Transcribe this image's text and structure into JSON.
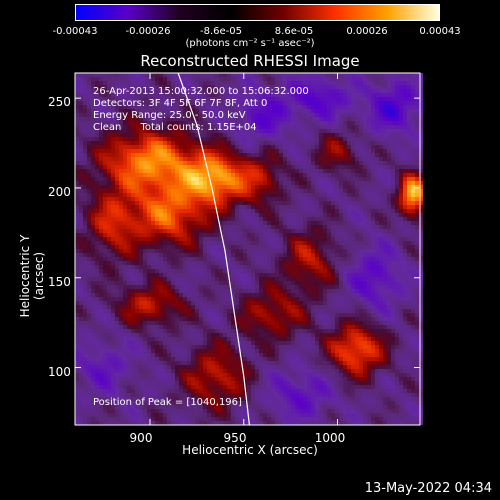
{
  "colorbar": {
    "ticks": [
      "-0.00043",
      "-0.00026",
      "-8.6e-05",
      "8.6e-05",
      "0.00026",
      "0.00043"
    ],
    "units": "(photons cm⁻² s⁻¹ asec⁻²)",
    "colors": [
      "#0000ff",
      "#5a00c8",
      "#200020",
      "#000000",
      "#700000",
      "#ff3000",
      "#ffa000",
      "#ffffe0"
    ]
  },
  "info": {
    "line1": "26-Apr-2013 15:00:32.000 to 15:06:32.000",
    "line2": "Detectors: 3F 4F 5F 6F 7F 8F, Att 0",
    "line3": "Energy Range: 25.0 - 50.0 keV",
    "line4": "Clean      Total counts: 1.15E+04",
    "peak": "Position of Peak = [1040,196]"
  },
  "footer": {
    "datestamp": "13-May-2022 04:34"
  },
  "chart_data": {
    "type": "heatmap",
    "title": "Reconstructed RHESSI Image",
    "xlabel": "Heliocentric X (arcsec)",
    "ylabel": "Heliocentric Y (arcsec)",
    "xlim": [
      860,
      1044
    ],
    "ylim": [
      68,
      264
    ],
    "xticks": [
      900,
      950,
      1000
    ],
    "yticks": [
      100,
      150,
      200,
      250
    ],
    "value_range": [
      -0.00043,
      0.00043
    ],
    "peak_position": [
      1040,
      196
    ],
    "limb_curve": [
      [
        915,
        264
      ],
      [
        925,
        235
      ],
      [
        933,
        200
      ],
      [
        940,
        165
      ],
      [
        945,
        130
      ],
      [
        950,
        95
      ],
      [
        953,
        68
      ]
    ],
    "blobs": [
      {
        "x": 900,
        "y": 215,
        "sx": 18,
        "sy": 12,
        "a": 0.85
      },
      {
        "x": 935,
        "y": 205,
        "sx": 12,
        "sy": 10,
        "a": 0.9
      },
      {
        "x": 910,
        "y": 185,
        "sx": 14,
        "sy": 12,
        "a": 0.7
      },
      {
        "x": 880,
        "y": 180,
        "sx": 10,
        "sy": 14,
        "a": 0.5
      },
      {
        "x": 900,
        "y": 135,
        "sx": 12,
        "sy": 8,
        "a": 0.5
      },
      {
        "x": 935,
        "y": 95,
        "sx": 12,
        "sy": 12,
        "a": 0.5
      },
      {
        "x": 965,
        "y": 130,
        "sx": 12,
        "sy": 10,
        "a": 0.45
      },
      {
        "x": 985,
        "y": 160,
        "sx": 10,
        "sy": 12,
        "a": 0.45
      },
      {
        "x": 1010,
        "y": 110,
        "sx": 10,
        "sy": 10,
        "a": 0.75
      },
      {
        "x": 1040,
        "y": 196,
        "sx": 5,
        "sy": 8,
        "a": 1.0
      },
      {
        "x": 1000,
        "y": 220,
        "sx": 8,
        "sy": 8,
        "a": 0.35
      },
      {
        "x": 960,
        "y": 205,
        "sx": 8,
        "sy": 10,
        "a": 0.4
      },
      {
        "x": 1030,
        "y": 245,
        "sx": 10,
        "sy": 10,
        "a": -0.5
      },
      {
        "x": 990,
        "y": 250,
        "sx": 12,
        "sy": 8,
        "a": -0.45
      },
      {
        "x": 960,
        "y": 240,
        "sx": 10,
        "sy": 10,
        "a": -0.4
      },
      {
        "x": 1020,
        "y": 150,
        "sx": 10,
        "sy": 12,
        "a": -0.4
      },
      {
        "x": 980,
        "y": 85,
        "sx": 12,
        "sy": 10,
        "a": -0.35
      },
      {
        "x": 875,
        "y": 100,
        "sx": 10,
        "sy": 10,
        "a": -0.3
      }
    ]
  }
}
